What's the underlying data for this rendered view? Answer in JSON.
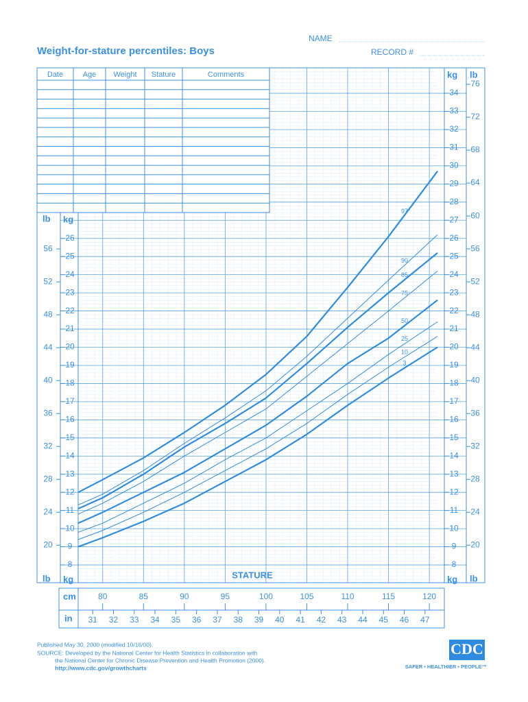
{
  "header": {
    "name_label": "NAME",
    "record_label": "RECORD #",
    "title": "Weight-for-stature percentiles: Boys"
  },
  "table": {
    "columns": [
      "Date",
      "Age",
      "Weight",
      "Stature",
      "Comments"
    ]
  },
  "chart_data": {
    "type": "line",
    "x_label": "STATURE",
    "x_unit": "cm",
    "x2_unit": "in",
    "y_unit": "kg",
    "y2_unit": "lb",
    "x": [
      77,
      80,
      85,
      90,
      95,
      100,
      105,
      110,
      115,
      121
    ],
    "series": [
      {
        "name": "97",
        "color": "#2f8be0",
        "width": 2.2,
        "values": [
          12.0,
          12.7,
          13.9,
          15.3,
          16.8,
          18.5,
          20.6,
          23.3,
          26.1,
          29.7
        ]
      },
      {
        "name": "90",
        "color": "#2f8be0",
        "width": 1,
        "values": [
          11.3,
          11.9,
          13.2,
          14.7,
          16.1,
          17.6,
          19.5,
          21.6,
          23.7,
          26.2
        ]
      },
      {
        "name": "85",
        "color": "#2f8be0",
        "width": 2.2,
        "values": [
          11.1,
          11.7,
          13.0,
          14.5,
          15.8,
          17.2,
          19.1,
          21.1,
          23.0,
          25.2
        ]
      },
      {
        "name": "75",
        "color": "#2f8be0",
        "width": 1,
        "values": [
          10.8,
          11.4,
          12.6,
          14.0,
          15.3,
          16.6,
          18.4,
          20.2,
          22.0,
          24.2
        ]
      },
      {
        "name": "50",
        "color": "#2f8be0",
        "width": 2.2,
        "values": [
          10.3,
          10.9,
          12.0,
          13.1,
          14.4,
          15.7,
          17.3,
          19.1,
          20.5,
          22.6
        ]
      },
      {
        "name": "25",
        "color": "#2f8be0",
        "width": 1,
        "values": [
          9.8,
          10.3,
          11.4,
          12.5,
          13.8,
          15.0,
          16.5,
          18.0,
          19.6,
          21.4
        ]
      },
      {
        "name": "10",
        "color": "#2f8be0",
        "width": 1,
        "values": [
          9.4,
          9.9,
          10.9,
          12.0,
          13.2,
          14.4,
          15.8,
          17.4,
          18.9,
          20.6
        ]
      },
      {
        "name": "3",
        "color": "#2f8be0",
        "width": 2.2,
        "values": [
          9.0,
          9.5,
          10.4,
          11.4,
          12.6,
          13.8,
          15.2,
          16.8,
          18.3,
          20.0
        ]
      }
    ],
    "xlim": [
      77,
      121
    ],
    "xticks": [
      80,
      85,
      90,
      95,
      100,
      105,
      110,
      115,
      120
    ],
    "x2lim": [
      30.3,
      47.6
    ],
    "x2ticks": [
      31,
      32,
      33,
      34,
      35,
      36,
      37,
      38,
      39,
      40,
      41,
      42,
      43,
      44,
      45,
      46,
      47
    ],
    "ylim": [
      7,
      35.4
    ],
    "yticks": [
      8,
      9,
      10,
      11,
      12,
      13,
      14,
      15,
      16,
      17,
      18,
      19,
      20,
      21,
      22,
      23,
      24,
      25,
      26,
      27,
      28,
      29,
      30,
      31,
      32,
      33,
      34
    ],
    "y2lim": [
      15.4,
      78.0
    ],
    "y2ticks": [
      20,
      24,
      28,
      32,
      36,
      40,
      44,
      48,
      52,
      56,
      60,
      64,
      68,
      72,
      76
    ],
    "grid": true
  },
  "footer": {
    "lines": [
      "Published May 30, 2000 (modified 10/16/00).",
      "SOURCE: Developed by the National Center for Health Statistics in collaboration with",
      "the National Center for Chronic Disease Prevention and Health Promotion (2000)."
    ],
    "url": "http://www.cdc.gov/growthcharts",
    "logo": "CDC",
    "tagline": "SAFER • HEALTHIER • PEOPLE™"
  }
}
